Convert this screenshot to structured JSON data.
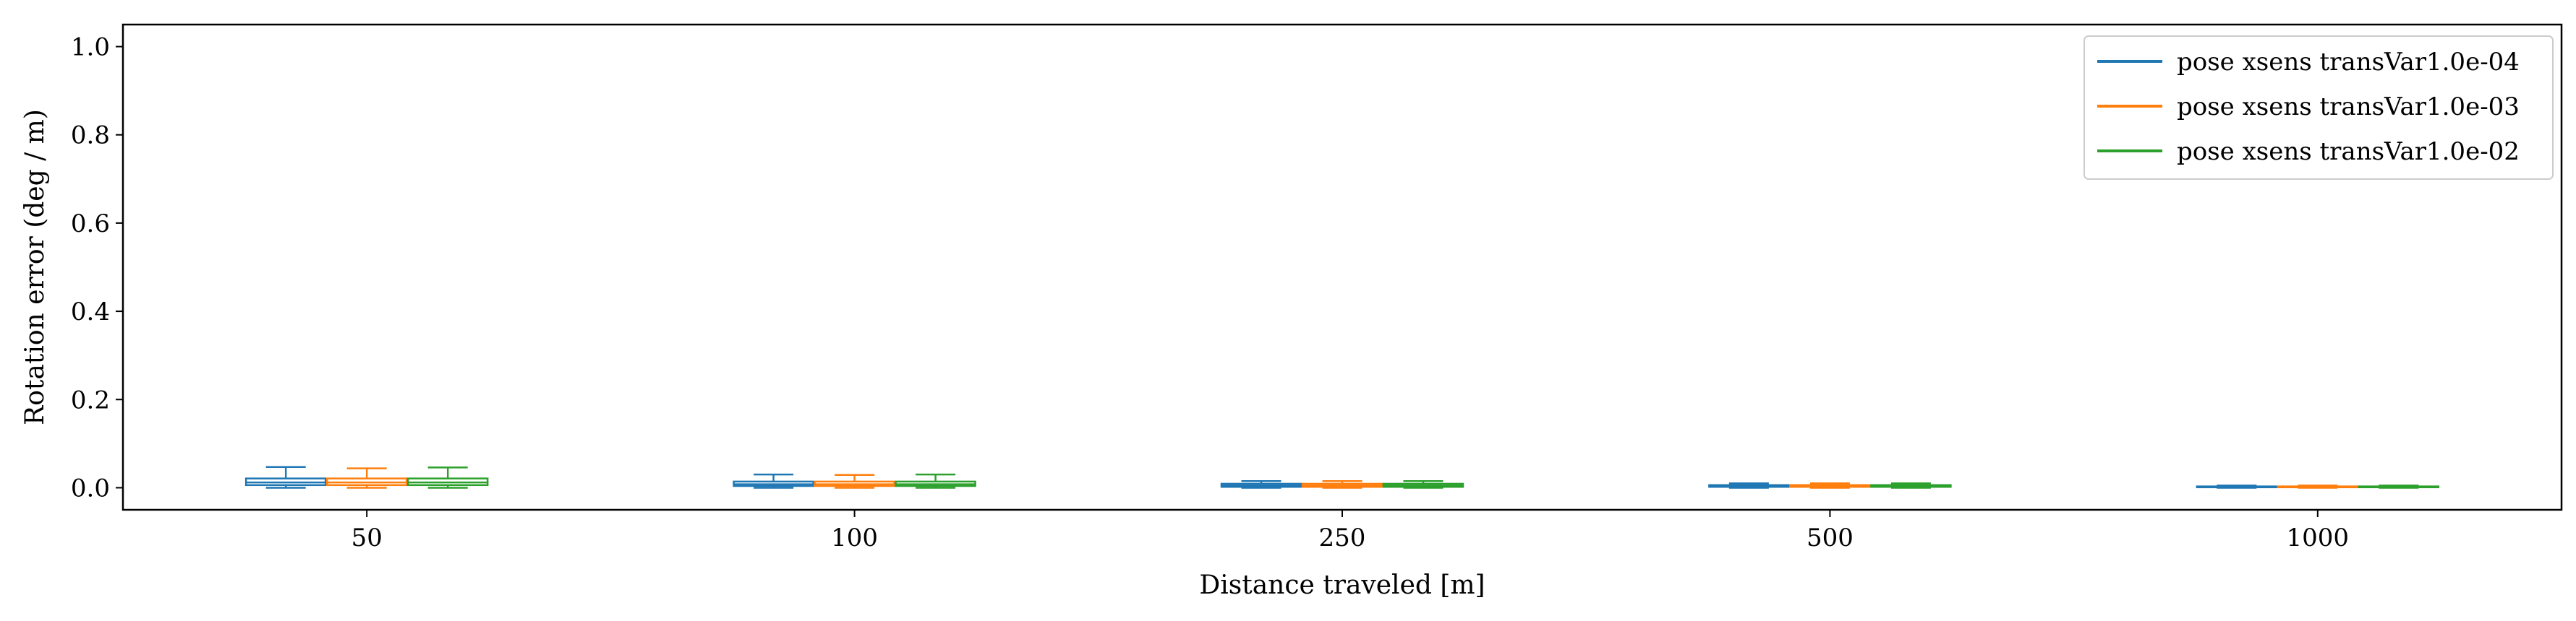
{
  "chart_data": {
    "type": "box",
    "title": "",
    "xlabel": "Distance traveled [m]",
    "ylabel": "Rotation error (deg / m)",
    "ylim": [
      -0.05,
      1.05
    ],
    "yticks": [
      0.0,
      0.2,
      0.4,
      0.6,
      0.8,
      1.0
    ],
    "ytick_labels": [
      "0.0",
      "0.2",
      "0.4",
      "0.6",
      "0.8",
      "1.0"
    ],
    "categories": [
      "50",
      "100",
      "250",
      "500",
      "1000"
    ],
    "legend_position": "top-right",
    "grid": false,
    "series": [
      {
        "name": "pose xsens transVar1.0e-04",
        "color": "#1f77b4",
        "boxes": [
          {
            "whisker_low": 0.0,
            "q1": 0.006,
            "median": 0.012,
            "q3": 0.021,
            "whisker_high": 0.047
          },
          {
            "whisker_low": 0.0,
            "q1": 0.004,
            "median": 0.008,
            "q3": 0.014,
            "whisker_high": 0.03
          },
          {
            "whisker_low": 0.0,
            "q1": 0.002,
            "median": 0.005,
            "q3": 0.009,
            "whisker_high": 0.015
          },
          {
            "whisker_low": 0.0,
            "q1": 0.002,
            "median": 0.004,
            "q3": 0.006,
            "whisker_high": 0.01
          },
          {
            "whisker_low": 0.0,
            "q1": 0.001,
            "median": 0.002,
            "q3": 0.003,
            "whisker_high": 0.005
          }
        ]
      },
      {
        "name": "pose xsens transVar1.0e-03",
        "color": "#ff7f0e",
        "boxes": [
          {
            "whisker_low": 0.0,
            "q1": 0.006,
            "median": 0.012,
            "q3": 0.021,
            "whisker_high": 0.044
          },
          {
            "whisker_low": 0.0,
            "q1": 0.004,
            "median": 0.008,
            "q3": 0.014,
            "whisker_high": 0.029
          },
          {
            "whisker_low": 0.0,
            "q1": 0.002,
            "median": 0.005,
            "q3": 0.009,
            "whisker_high": 0.015
          },
          {
            "whisker_low": 0.0,
            "q1": 0.002,
            "median": 0.004,
            "q3": 0.006,
            "whisker_high": 0.01
          },
          {
            "whisker_low": 0.0,
            "q1": 0.001,
            "median": 0.002,
            "q3": 0.003,
            "whisker_high": 0.005
          }
        ]
      },
      {
        "name": "pose xsens transVar1.0e-02",
        "color": "#2ca02c",
        "boxes": [
          {
            "whisker_low": 0.0,
            "q1": 0.006,
            "median": 0.012,
            "q3": 0.021,
            "whisker_high": 0.046
          },
          {
            "whisker_low": 0.0,
            "q1": 0.004,
            "median": 0.008,
            "q3": 0.014,
            "whisker_high": 0.03
          },
          {
            "whisker_low": 0.0,
            "q1": 0.002,
            "median": 0.005,
            "q3": 0.009,
            "whisker_high": 0.015
          },
          {
            "whisker_low": 0.0,
            "q1": 0.002,
            "median": 0.004,
            "q3": 0.006,
            "whisker_high": 0.01
          },
          {
            "whisker_low": 0.0,
            "q1": 0.001,
            "median": 0.002,
            "q3": 0.003,
            "whisker_high": 0.005
          }
        ]
      }
    ]
  }
}
